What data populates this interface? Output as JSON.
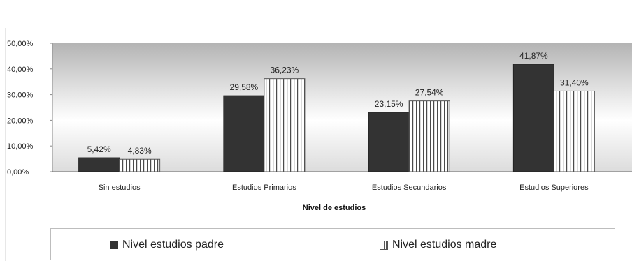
{
  "chart_data": {
    "type": "bar",
    "title": "",
    "xlabel": "Nivel de estudios",
    "ylabel": "",
    "ylim": [
      0,
      50
    ],
    "yticks": [
      "0,00%",
      "10,00%",
      "20,00%",
      "30,00%",
      "40,00%",
      "50,00%"
    ],
    "categories": [
      "Sin estudios",
      "Estudios Primarios",
      "Estudios Secundarios",
      "Estudios Superiores"
    ],
    "series": [
      {
        "name": "Nivel estudios padre",
        "values": [
          5.42,
          29.58,
          23.15,
          41.87
        ],
        "labels": [
          "5,42%",
          "29,58%",
          "23,15%",
          "41,87%"
        ],
        "color": "#333333"
      },
      {
        "name": "Nivel estudios madre",
        "values": [
          4.83,
          36.23,
          27.54,
          31.4
        ],
        "labels": [
          "4,83%",
          "36,23%",
          "27,54%",
          "31,40%"
        ],
        "color": "#ffffff"
      }
    ],
    "legend": "bottom",
    "grid": false
  }
}
